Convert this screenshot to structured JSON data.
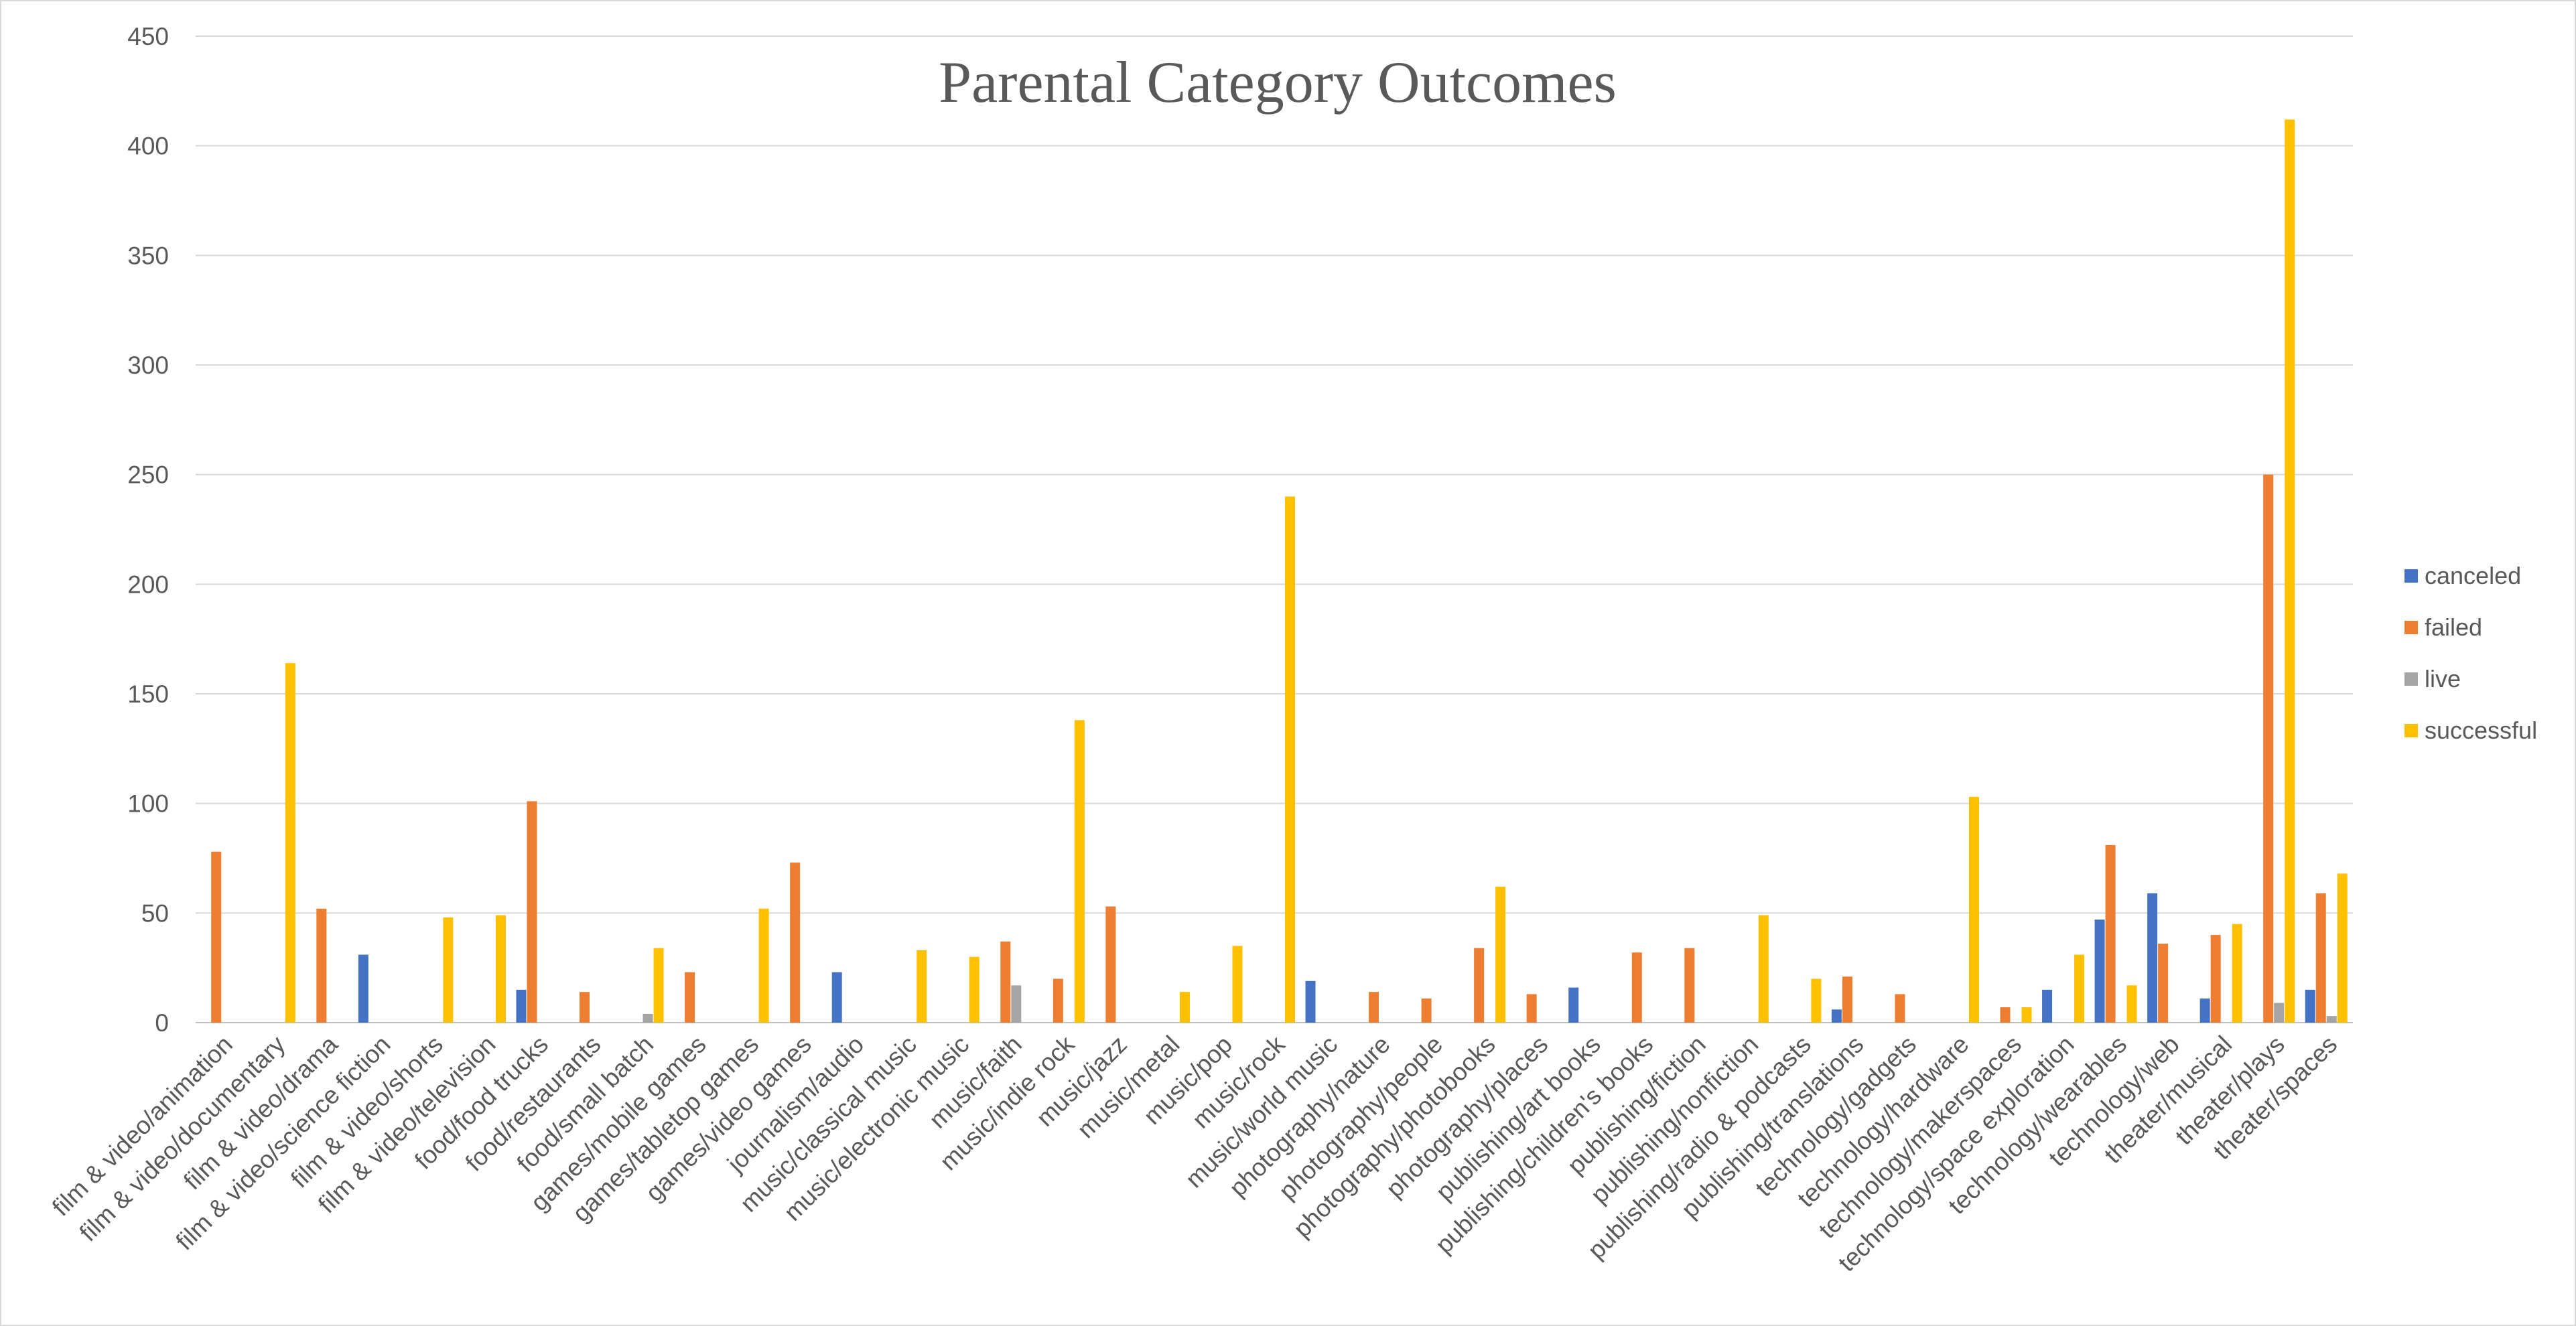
{
  "chart_data": {
    "type": "bar",
    "title": "Parental Category Outcomes",
    "xlabel": "",
    "ylabel": "",
    "ylim": [
      0,
      450
    ],
    "yticks": [
      0,
      50,
      100,
      150,
      200,
      250,
      300,
      350,
      400,
      450
    ],
    "grid": true,
    "legend_position": "right",
    "categories": [
      "film & video/animation",
      "film & video/documentary",
      "film & video/drama",
      "film & video/science fiction",
      "film & video/shorts",
      "film & video/television",
      "food/food trucks",
      "food/restaurants",
      "food/small batch",
      "games/mobile games",
      "games/tabletop games",
      "games/video games",
      "journalism/audio",
      "music/classical music",
      "music/electronic music",
      "music/faith",
      "music/indie rock",
      "music/jazz",
      "music/metal",
      "music/pop",
      "music/rock",
      "music/world music",
      "photography/nature",
      "photography/people",
      "photography/photobooks",
      "photography/places",
      "publishing/art books",
      "publishing/children's books",
      "publishing/fiction",
      "publishing/nonfiction",
      "publishing/radio & podcasts",
      "publishing/translations",
      "technology/gadgets",
      "technology/hardware",
      "technology/makerspaces",
      "technology/space exploration",
      "technology/wearables",
      "technology/web",
      "theater/musical",
      "theater/plays",
      "theater/spaces"
    ],
    "series": [
      {
        "name": "canceled",
        "color": "#4472C4",
        "values": [
          0,
          0,
          0,
          31,
          0,
          0,
          15,
          0,
          0,
          0,
          0,
          0,
          23,
          0,
          0,
          0,
          0,
          0,
          0,
          0,
          0,
          19,
          0,
          0,
          0,
          0,
          16,
          0,
          0,
          0,
          0,
          6,
          0,
          0,
          0,
          15,
          47,
          59,
          11,
          0,
          15
        ]
      },
      {
        "name": "failed",
        "color": "#ED7D31",
        "values": [
          78,
          0,
          52,
          0,
          0,
          0,
          101,
          14,
          0,
          23,
          0,
          73,
          0,
          0,
          0,
          37,
          20,
          53,
          0,
          0,
          0,
          0,
          14,
          11,
          34,
          13,
          0,
          32,
          34,
          0,
          0,
          21,
          13,
          0,
          7,
          0,
          81,
          36,
          40,
          250,
          59
        ]
      },
      {
        "name": "live",
        "color": "#A5A5A5",
        "values": [
          0,
          0,
          0,
          0,
          0,
          0,
          0,
          0,
          4,
          0,
          0,
          0,
          0,
          0,
          0,
          17,
          0,
          0,
          0,
          0,
          0,
          0,
          0,
          0,
          0,
          0,
          0,
          0,
          0,
          0,
          0,
          0,
          0,
          0,
          0,
          0,
          0,
          0,
          0,
          9,
          3
        ]
      },
      {
        "name": "successful",
        "color": "#FFC000",
        "values": [
          0,
          164,
          0,
          0,
          48,
          49,
          0,
          0,
          34,
          0,
          52,
          0,
          0,
          33,
          30,
          0,
          138,
          0,
          14,
          35,
          240,
          0,
          0,
          0,
          62,
          0,
          0,
          0,
          0,
          49,
          20,
          0,
          0,
          103,
          7,
          31,
          17,
          0,
          45,
          412,
          68
        ]
      }
    ]
  }
}
